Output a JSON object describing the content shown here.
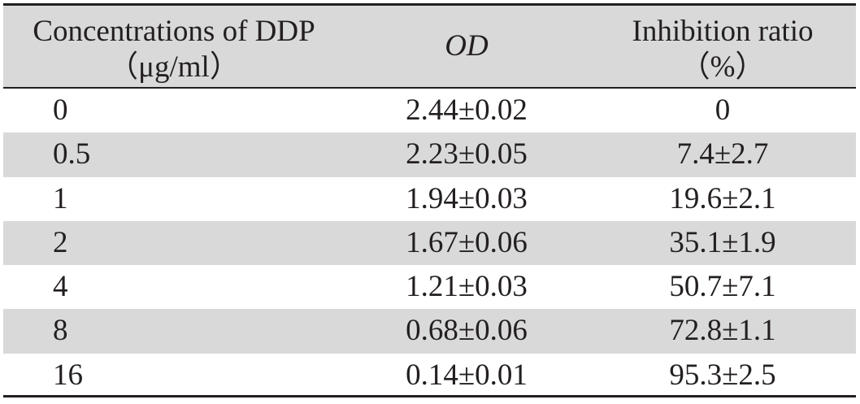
{
  "table": {
    "headers": {
      "concentration": {
        "line1": "Concentrations of DDP",
        "line2": "（μg/ml）"
      },
      "od": {
        "text": "OD"
      },
      "inhibition": {
        "line1": "Inhibition ratio",
        "line2": "（%）"
      }
    },
    "rows": [
      {
        "concentration": "0",
        "od": "2.44±0.02",
        "inhibition": "0"
      },
      {
        "concentration": "0.5",
        "od": "2.23±0.05",
        "inhibition": "7.4±2.7"
      },
      {
        "concentration": "1",
        "od": "1.94±0.03",
        "inhibition": "19.6±2.1"
      },
      {
        "concentration": "2",
        "od": "1.67±0.06",
        "inhibition": "35.1±1.9"
      },
      {
        "concentration": "4",
        "od": "1.21±0.03",
        "inhibition": "50.7±7.1"
      },
      {
        "concentration": "8",
        "od": "0.68±0.06",
        "inhibition": "72.8±1.1"
      },
      {
        "concentration": "16",
        "od": "0.14±0.01",
        "inhibition": "95.3±2.5"
      }
    ]
  },
  "colors": {
    "shade": "#d9d9da",
    "text": "#231f20",
    "rule": "#231f20"
  }
}
